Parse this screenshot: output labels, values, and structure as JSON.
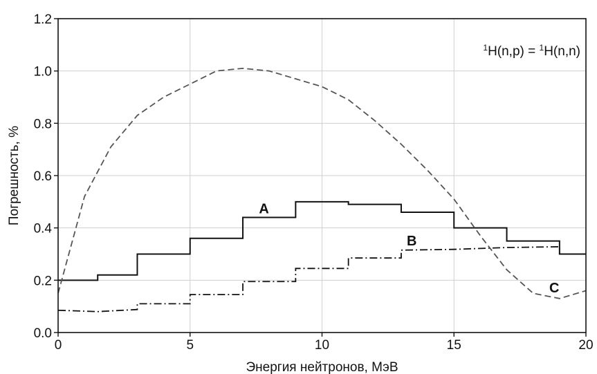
{
  "chart_data": {
    "type": "line",
    "title": "",
    "xlabel": "Энергия нейтронов, МэВ",
    "ylabel": "Погрешность, %",
    "xlim": [
      0,
      20
    ],
    "ylim": [
      0,
      1.2
    ],
    "xticks": [
      0,
      5,
      10,
      15,
      20
    ],
    "xtick_labels": [
      "0",
      "5",
      "10",
      "15",
      "20"
    ],
    "yticks": [
      0,
      0.2,
      0.4,
      0.6,
      0.8,
      1.0,
      1.2
    ],
    "ytick_labels": [
      "0.0",
      "0.2",
      "0.4",
      "0.6",
      "0.8",
      "1.0",
      "1.2"
    ],
    "grid": true,
    "annotation": {
      "sup1": "1",
      "part1": "H(n,p) = ",
      "sup2": "1",
      "part2": "H(n,n)"
    },
    "series": [
      {
        "label": "A",
        "style": "solid",
        "kind": "step",
        "color": "#111111",
        "x": [
          0,
          1.5,
          1.5,
          3,
          3,
          5,
          5,
          7,
          7,
          9,
          9,
          11,
          11,
          13,
          13,
          15,
          15,
          17,
          17,
          19,
          19,
          20
        ],
        "y": [
          0.2,
          0.2,
          0.22,
          0.22,
          0.3,
          0.3,
          0.36,
          0.36,
          0.44,
          0.44,
          0.5,
          0.5,
          0.49,
          0.49,
          0.46,
          0.46,
          0.4,
          0.4,
          0.35,
          0.35,
          0.3,
          0.3
        ]
      },
      {
        "label": "B",
        "style": "dashdot",
        "kind": "step",
        "color": "#111111",
        "x": [
          0,
          1.5,
          3,
          3,
          5,
          5,
          7,
          7,
          9,
          9,
          11,
          11,
          13,
          13,
          15,
          17,
          19,
          19,
          20
        ],
        "y": [
          0.085,
          0.08,
          0.088,
          0.11,
          0.11,
          0.145,
          0.145,
          0.195,
          0.195,
          0.245,
          0.245,
          0.285,
          0.285,
          0.315,
          0.318,
          0.325,
          0.328,
          0.3,
          0.3
        ]
      },
      {
        "label": "C",
        "style": "dashed",
        "kind": "line",
        "color": "#555555",
        "x": [
          0,
          1,
          2,
          3,
          4,
          5,
          6,
          7,
          8,
          9,
          10,
          11,
          12,
          13,
          14,
          15,
          16,
          17,
          18,
          19,
          20
        ],
        "y": [
          0.15,
          0.52,
          0.71,
          0.83,
          0.9,
          0.95,
          1.0,
          1.01,
          1.0,
          0.97,
          0.94,
          0.89,
          0.81,
          0.72,
          0.62,
          0.51,
          0.37,
          0.24,
          0.15,
          0.13,
          0.16
        ]
      }
    ]
  }
}
